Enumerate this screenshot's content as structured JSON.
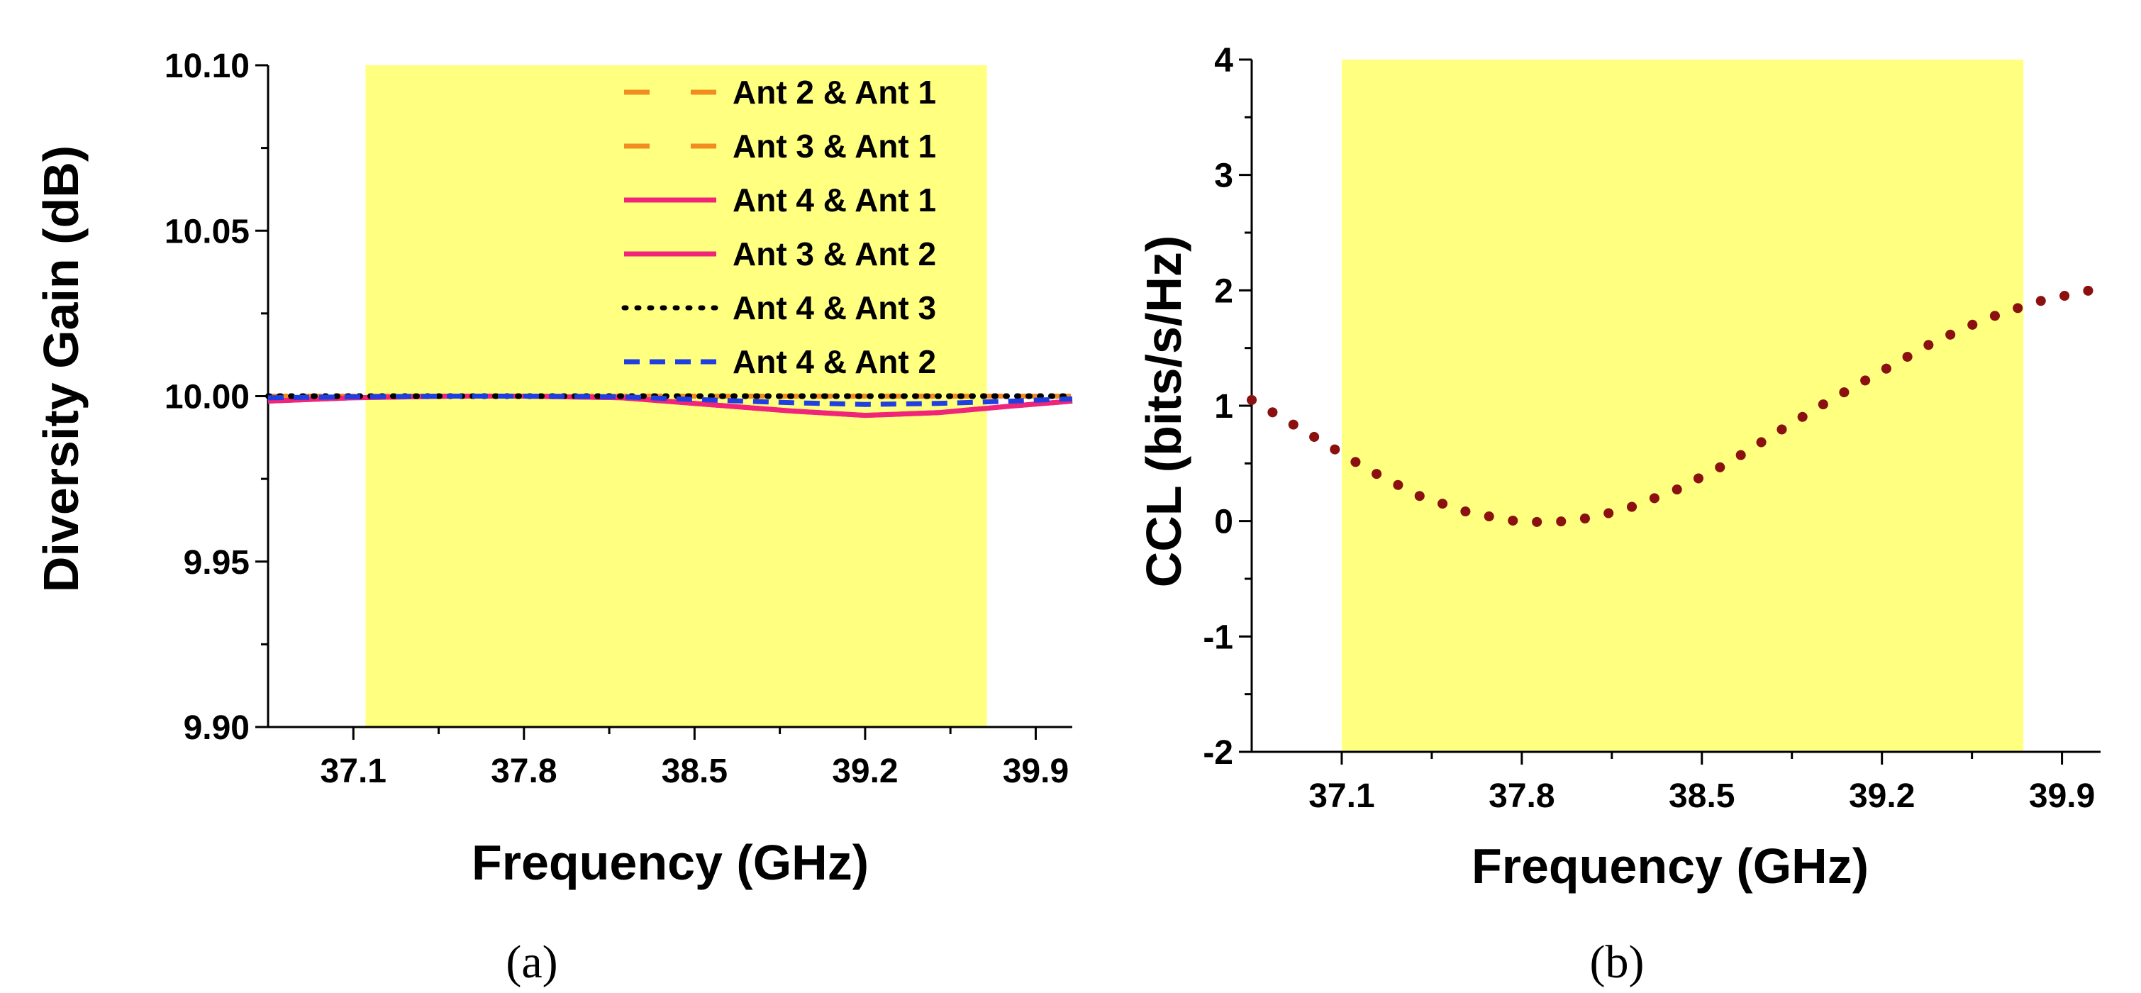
{
  "chart_data": [
    {
      "type": "line",
      "panel": "(a)",
      "caption": "(a)",
      "xlabel": "Frequency (GHz)",
      "ylabel": "Diversity Gain (dB)",
      "xlim": [
        36.75,
        40.05
      ],
      "ylim": [
        9.9,
        10.1
      ],
      "xticks": [
        37.1,
        37.8,
        38.5,
        39.2,
        39.9
      ],
      "xtick_labels": [
        "37.1",
        "37.8",
        "38.5",
        "39.2",
        "39.9"
      ],
      "yticks": [
        9.9,
        9.95,
        10.0,
        10.05,
        10.1
      ],
      "ytick_labels": [
        "9.90",
        "9.95",
        "10.00",
        "10.05",
        "10.10"
      ],
      "highlight_band": {
        "x0": 37.15,
        "x1": 39.7,
        "color": "#FFFF80"
      },
      "legend_position": "top-right",
      "series": [
        {
          "name": "Ant 2 & Ant 1",
          "color": "#F28C1E",
          "style": "long-dash",
          "x": [
            36.75,
            37.1,
            37.5,
            37.8,
            38.2,
            38.5,
            38.9,
            39.2,
            39.5,
            39.8,
            40.05
          ],
          "y": [
            10.0,
            10.0,
            10.0,
            10.0,
            10.0,
            10.0,
            10.0,
            10.0,
            10.0,
            10.0,
            10.0
          ]
        },
        {
          "name": "Ant 3 & Ant 1",
          "color": "#F28C1E",
          "style": "long-dash",
          "x": [
            36.75,
            37.1,
            37.5,
            37.8,
            38.2,
            38.5,
            38.9,
            39.2,
            39.5,
            39.8,
            40.05
          ],
          "y": [
            10.0,
            10.0,
            10.0,
            10.0,
            10.0,
            10.0,
            10.0,
            10.0,
            10.0,
            10.0,
            10.0
          ]
        },
        {
          "name": "Ant 4 & Ant 1",
          "color": "#F0257A",
          "style": "solid",
          "x": [
            36.75,
            37.1,
            37.5,
            37.8,
            38.2,
            38.5,
            38.9,
            39.2,
            39.5,
            39.8,
            40.05
          ],
          "y": [
            9.9985,
            9.9995,
            10.0,
            10.0,
            9.9995,
            9.9978,
            9.9955,
            9.9942,
            9.995,
            9.997,
            9.9985
          ]
        },
        {
          "name": "Ant 3 & Ant 2",
          "color": "#F0257A",
          "style": "solid",
          "x": [
            36.75,
            37.1,
            37.5,
            37.8,
            38.2,
            38.5,
            38.9,
            39.2,
            39.5,
            39.8,
            40.05
          ],
          "y": [
            9.9985,
            9.9995,
            10.0,
            10.0,
            9.9995,
            9.9978,
            9.9955,
            9.9942,
            9.995,
            9.997,
            9.9985
          ]
        },
        {
          "name": "Ant 4 & Ant 3",
          "color": "#000000",
          "style": "dotted",
          "x": [
            36.75,
            37.1,
            37.5,
            37.8,
            38.2,
            38.5,
            38.9,
            39.2,
            39.5,
            39.8,
            40.05
          ],
          "y": [
            10.0,
            10.0,
            10.0,
            10.0,
            10.0,
            10.0,
            10.0,
            10.0,
            10.0,
            10.0,
            10.0
          ]
        },
        {
          "name": "Ant 4 & Ant 2",
          "color": "#1F3FE0",
          "style": "dash",
          "x": [
            36.75,
            37.1,
            37.5,
            37.8,
            38.2,
            38.5,
            38.9,
            39.2,
            39.5,
            39.8,
            40.05
          ],
          "y": [
            9.9995,
            9.9998,
            10.0,
            10.0,
            9.9998,
            9.999,
            9.998,
            9.9975,
            9.9978,
            9.9985,
            9.9992
          ]
        }
      ]
    },
    {
      "type": "line",
      "panel": "(b)",
      "caption": "(b)",
      "xlabel": "Frequency (GHz)",
      "ylabel": "CCL (bits/s/Hz)",
      "xlim": [
        36.75,
        40.05
      ],
      "ylim": [
        -2,
        4
      ],
      "xticks": [
        37.1,
        37.8,
        38.5,
        39.2,
        39.9
      ],
      "xtick_labels": [
        "37.1",
        "37.8",
        "38.5",
        "39.2",
        "39.9"
      ],
      "yticks": [
        -2,
        -1,
        0,
        1,
        2,
        3,
        4
      ],
      "ytick_labels": [
        "-2",
        "-1",
        "0",
        "1",
        "2",
        "3",
        "4"
      ],
      "highlight_band": {
        "x0": 37.1,
        "x1": 39.75,
        "color": "#FFFF80"
      },
      "series": [
        {
          "name": "CCL",
          "color": "#8B1010",
          "style": "dotted",
          "x": [
            36.75,
            37.0,
            37.2,
            37.4,
            37.6,
            37.8,
            38.0,
            38.2,
            38.4,
            38.6,
            38.8,
            39.0,
            39.2,
            39.4,
            39.6,
            39.8,
            40.05
          ],
          "y": [
            1.05,
            0.72,
            0.45,
            0.22,
            0.07,
            -0.01,
            0.0,
            0.1,
            0.27,
            0.5,
            0.78,
            1.05,
            1.3,
            1.55,
            1.75,
            1.9,
            2.02
          ]
        }
      ]
    }
  ]
}
